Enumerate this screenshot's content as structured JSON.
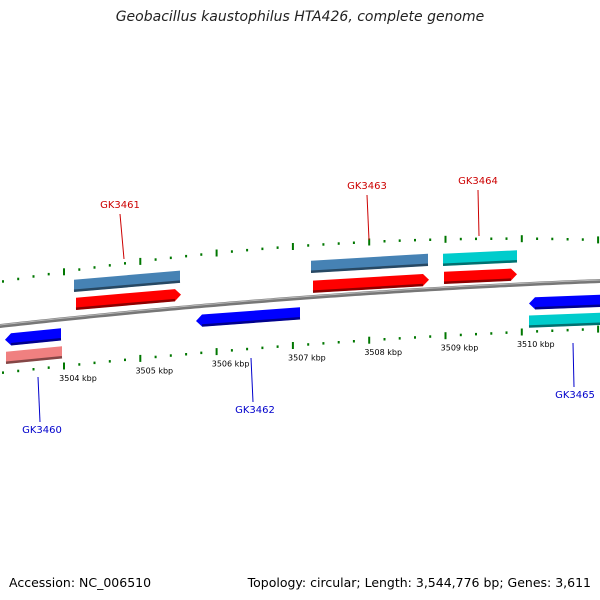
{
  "title": "Geobacillus kaustophilus HTA426, complete genome",
  "accession": "Accession: NC_006510",
  "summary": "Topology: circular; Length: 3,544,776 bp; Genes: 3,611",
  "colors": {
    "forward_gene": "#ff0000",
    "forward_gene_alt": "#4682b4",
    "reverse_gene": "#0000ff",
    "reverse_gene_pink": "#f08080",
    "reverse_gene_cyan": "#00cccc",
    "forward_label": "#cc0000",
    "reverse_label": "#0000cc",
    "tick": "#007700",
    "backbone": "#777777"
  },
  "scale_ticks": [
    "3504 kbp",
    "3505 kbp",
    "3506 kbp",
    "3507 kbp",
    "3508 kbp",
    "3509 kbp",
    "3510 kbp"
  ],
  "genes": [
    {
      "name": "GK3460",
      "strand": "reverse"
    },
    {
      "name": "GK3461",
      "strand": "forward"
    },
    {
      "name": "GK3462",
      "strand": "reverse"
    },
    {
      "name": "GK3463",
      "strand": "forward"
    },
    {
      "name": "GK3464",
      "strand": "forward"
    },
    {
      "name": "GK3465",
      "strand": "reverse"
    }
  ]
}
